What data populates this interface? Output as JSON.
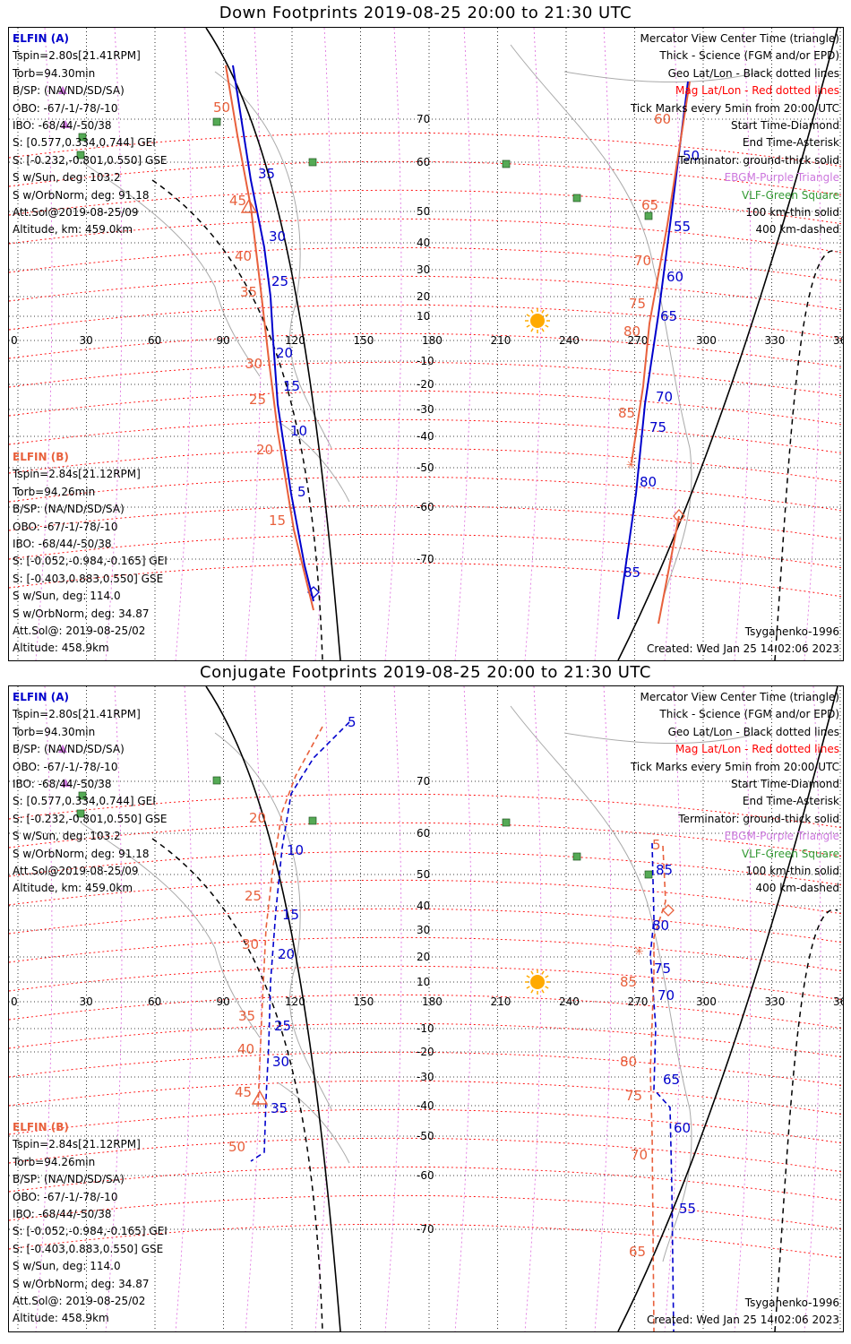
{
  "panels": [
    {
      "title": "Down Footprints 2019-08-25 20:00 to 21:30 UTC",
      "elfin_a": {
        "name": "ELFIN (A)",
        "lines": [
          "Tspin=2.80s[21.41RPM]",
          "Torb=94.30min",
          "B/SP: (NA/ND/SD/SA)",
          "OBO: -67/-1/-78/-10",
          "IBO: -68/44/-50/38",
          "S: [0.577,0.334,0.744] GEI",
          "S: [-0.232,-0.801,0.550] GSE",
          "S w/Sun, deg: 103.2",
          "S w/OrbNorm, deg: 91.18",
          "Att.Sol@2019-08-25/09",
          "Altitude, km: 459.0km"
        ]
      },
      "elfin_b": {
        "name": "ELFIN (B)",
        "lines": [
          "Tspin=2.84s[21.12RPM]",
          "Torb=94.26min",
          "B/SP: (NA/ND/SD/SA)",
          "OBO: -67/-1/-78/-10",
          "IBO: -68/44/-50/38",
          "S: [-0.052,-0.984,-0.165] GEI",
          "S: [-0.403,0.883,0.550] GSE",
          "S w/Sun, deg: 114.0",
          "S w/OrbNorm, deg: 34.87",
          "Att.Sol@: 2019-08-25/02",
          "Altitude: 458.9km"
        ]
      },
      "legend": [
        "Mercator View Center Time (triangle)",
        "Thick - Science (FGM and/or EPD)",
        "Geo Lat/Lon - Black dotted lines",
        "Mag Lat/Lon - Red dotted lines",
        "Tick Marks every 5min from 20:00 UTC",
        "Start Time-Diamond",
        "End Time-Asterisk",
        "Terminator: ground-thick solid",
        "EBGM-Purple Triangle",
        "VLF-Green Square",
        "100 km-thin solid",
        "400 km-dashed"
      ],
      "model": "Tsyganenko-1996",
      "created": "Created: Wed Jan 25 14:02:06 2023",
      "tracks": {
        "a_blue": {
          "labels": [
            "50",
            "55",
            "60",
            "65",
            "70",
            "75",
            "80",
            "85",
            "35",
            "30",
            "25",
            "20",
            "15",
            "10",
            "5"
          ]
        },
        "b_red": {
          "labels": [
            "60",
            "65",
            "70",
            "75",
            "80",
            "85",
            "50",
            "45",
            "40",
            "35",
            "30",
            "25",
            "20",
            "15"
          ]
        }
      }
    },
    {
      "title": "Conjugate Footprints 2019-08-25 20:00 to 21:30 UTC",
      "elfin_a": {
        "name": "ELFIN (A)",
        "lines": [
          "Tspin=2.80s[21.41RPM]",
          "Torb=94.30min",
          "B/SP: (NA/ND/SD/SA)",
          "OBO: -67/-1/-78/-10",
          "IBO: -68/44/-50/38",
          "S: [0.577,0.334,0.744] GEI",
          "S: [-0.232,-0.801,0.550] GSE",
          "S w/Sun, deg: 103.2",
          "S w/OrbNorm, deg: 91.18",
          "Att.Sol@2019-08-25/09",
          "Altitude, km: 459.0km"
        ]
      },
      "elfin_b": {
        "name": "ELFIN (B)",
        "lines": [
          "Tspin=2.84s[21.12RPM]",
          "Torb=94.26min",
          "B/SP: (NA/ND/SD/SA)",
          "OBO: -67/-1/-78/-10",
          "IBO: -68/44/-50/38",
          "S: [-0.052,-0.984,-0.165] GEI",
          "S: [-0.403,0.883,0.550] GSE",
          "S w/Sun, deg: 114.0",
          "S w/OrbNorm, deg: 34.87",
          "Att.Sol@: 2019-08-25/02",
          "Altitude: 458.9km"
        ]
      },
      "legend": [
        "Mercator View Center Time (triangle)",
        "Thick - Science (FGM and/or EPD)",
        "Geo Lat/Lon - Black dotted lines",
        "Mag Lat/Lon - Red dotted lines",
        "Tick Marks every 5min from 20:00 UTC",
        "Start Time-Diamond",
        "End Time-Asterisk",
        "Terminator: ground-thick solid",
        "EBGM-Purple Triangle",
        "VLF-Green Square",
        "100 km-thin solid",
        "400 km-dashed"
      ],
      "model": "Tsyganenko-1996",
      "created": "Created: Wed Jan 25 14:02:06 2023"
    }
  ],
  "axes": {
    "lon_ticks": [
      "0",
      "30",
      "60",
      "90",
      "120",
      "150",
      "180",
      "210",
      "240",
      "270",
      "300",
      "330",
      "360"
    ],
    "lat_ticks_top": [
      "70",
      "60",
      "50",
      "40",
      "30",
      "20",
      "10",
      "-10",
      "-20",
      "-30",
      "-40",
      "-50",
      "-60",
      "-70"
    ]
  },
  "colors": {
    "elfin_a": "#0000cc",
    "elfin_b": "#e8603c",
    "mag_grid": "#ff0000",
    "geo_grid": "#000000",
    "coast": "#aaaaaa",
    "sun": "#ffaa00",
    "vlf": "#339933",
    "ebgm": "#cc77dd"
  }
}
